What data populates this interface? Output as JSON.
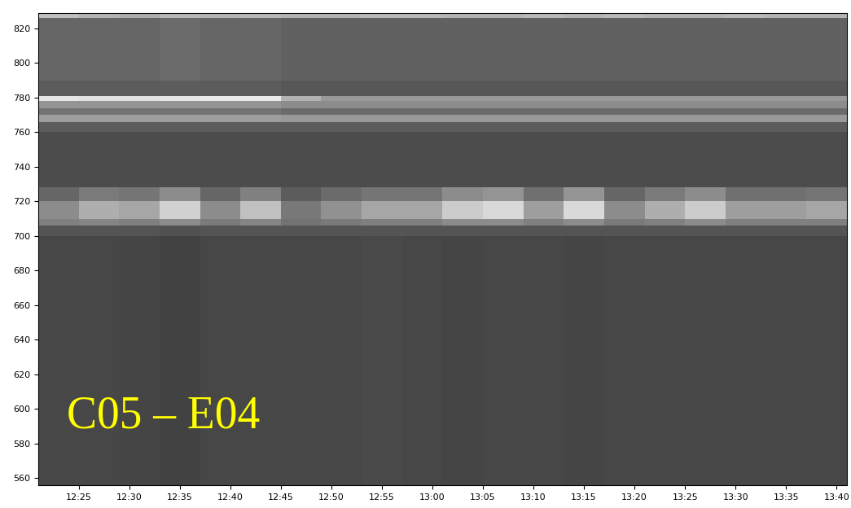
{
  "chart_data": {
    "type": "heatmap",
    "annotations": [
      "C05 – E04"
    ],
    "x_edges": [
      741,
      745,
      749,
      753,
      757,
      761,
      765,
      769,
      773,
      777,
      781,
      785,
      789,
      793,
      797,
      801,
      805,
      809,
      813,
      817,
      821
    ],
    "y_edges": [
      556,
      700,
      706,
      710,
      720,
      728,
      760,
      766,
      770,
      774,
      778,
      781,
      790,
      826,
      829
    ],
    "cells": [
      [
        0.28,
        0.28,
        0.27,
        0.26,
        0.28,
        0.28,
        0.28,
        0.28,
        0.29,
        0.28,
        0.27,
        0.28,
        0.28,
        0.27,
        0.28,
        0.28,
        0.28,
        0.28,
        0.28,
        0.28
      ],
      [
        0.33,
        0.33,
        0.33,
        0.32,
        0.33,
        0.33,
        0.33,
        0.33,
        0.33,
        0.33,
        0.33,
        0.33,
        0.33,
        0.33,
        0.33,
        0.33,
        0.33,
        0.33,
        0.33,
        0.33
      ],
      [
        0.5,
        0.52,
        0.5,
        0.55,
        0.48,
        0.52,
        0.45,
        0.48,
        0.5,
        0.5,
        0.55,
        0.55,
        0.5,
        0.55,
        0.48,
        0.5,
        0.55,
        0.5,
        0.5,
        0.5
      ],
      [
        0.55,
        0.68,
        0.65,
        0.82,
        0.55,
        0.75,
        0.47,
        0.57,
        0.65,
        0.65,
        0.8,
        0.85,
        0.62,
        0.85,
        0.55,
        0.68,
        0.8,
        0.62,
        0.62,
        0.65
      ],
      [
        0.4,
        0.48,
        0.46,
        0.55,
        0.4,
        0.5,
        0.36,
        0.42,
        0.46,
        0.46,
        0.55,
        0.58,
        0.44,
        0.58,
        0.4,
        0.48,
        0.55,
        0.44,
        0.44,
        0.46
      ],
      [
        0.3,
        0.3,
        0.3,
        0.3,
        0.3,
        0.3,
        0.3,
        0.3,
        0.3,
        0.3,
        0.3,
        0.3,
        0.3,
        0.3,
        0.3,
        0.3,
        0.3,
        0.3,
        0.3,
        0.3
      ],
      [
        0.36,
        0.36,
        0.36,
        0.36,
        0.36,
        0.36,
        0.36,
        0.36,
        0.36,
        0.36,
        0.36,
        0.36,
        0.36,
        0.36,
        0.36,
        0.36,
        0.36,
        0.36,
        0.36,
        0.36
      ],
      [
        0.62,
        0.62,
        0.62,
        0.62,
        0.62,
        0.62,
        0.6,
        0.6,
        0.6,
        0.6,
        0.6,
        0.6,
        0.6,
        0.6,
        0.6,
        0.6,
        0.6,
        0.6,
        0.6,
        0.6
      ],
      [
        0.45,
        0.45,
        0.45,
        0.45,
        0.45,
        0.45,
        0.42,
        0.42,
        0.42,
        0.42,
        0.42,
        0.42,
        0.42,
        0.42,
        0.42,
        0.42,
        0.42,
        0.42,
        0.42,
        0.42
      ],
      [
        0.58,
        0.58,
        0.58,
        0.58,
        0.58,
        0.58,
        0.55,
        0.55,
        0.55,
        0.55,
        0.55,
        0.55,
        0.55,
        0.55,
        0.55,
        0.55,
        0.55,
        0.55,
        0.55,
        0.55
      ],
      [
        0.9,
        0.88,
        0.88,
        0.9,
        0.92,
        0.92,
        0.7,
        0.6,
        0.6,
        0.6,
        0.6,
        0.6,
        0.6,
        0.6,
        0.6,
        0.6,
        0.6,
        0.6,
        0.6,
        0.6
      ],
      [
        0.36,
        0.36,
        0.36,
        0.36,
        0.36,
        0.36,
        0.34,
        0.34,
        0.34,
        0.34,
        0.34,
        0.34,
        0.34,
        0.34,
        0.34,
        0.34,
        0.34,
        0.34,
        0.34,
        0.34
      ],
      [
        0.4,
        0.4,
        0.4,
        0.42,
        0.4,
        0.4,
        0.38,
        0.38,
        0.38,
        0.38,
        0.38,
        0.38,
        0.38,
        0.38,
        0.38,
        0.38,
        0.38,
        0.38,
        0.38,
        0.38
      ],
      [
        0.75,
        0.7,
        0.68,
        0.72,
        0.7,
        0.72,
        0.7,
        0.7,
        0.72,
        0.72,
        0.7,
        0.7,
        0.72,
        0.7,
        0.72,
        0.7,
        0.7,
        0.72,
        0.7,
        0.7
      ]
    ],
    "clim": [
      0,
      1
    ],
    "xlim": [
      741,
      821
    ],
    "ylim": [
      556,
      829
    ],
    "xticks": [
      {
        "value": 745,
        "label": "12:25"
      },
      {
        "value": 750,
        "label": "12:30"
      },
      {
        "value": 755,
        "label": "12:35"
      },
      {
        "value": 760,
        "label": "12:40"
      },
      {
        "value": 765,
        "label": "12:45"
      },
      {
        "value": 770,
        "label": "12:50"
      },
      {
        "value": 775,
        "label": "12:55"
      },
      {
        "value": 780,
        "label": "13:00"
      },
      {
        "value": 785,
        "label": "13:05"
      },
      {
        "value": 790,
        "label": "13:10"
      },
      {
        "value": 795,
        "label": "13:15"
      },
      {
        "value": 800,
        "label": "13:20"
      },
      {
        "value": 805,
        "label": "13:25"
      },
      {
        "value": 810,
        "label": "13:30"
      },
      {
        "value": 815,
        "label": "13:35"
      },
      {
        "value": 820,
        "label": "13:40"
      }
    ],
    "yticks": [
      560,
      580,
      600,
      620,
      640,
      660,
      680,
      700,
      720,
      740,
      760,
      780,
      800,
      820
    ]
  }
}
